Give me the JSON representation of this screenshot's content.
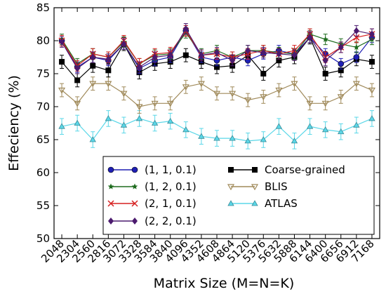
{
  "chart_data": {
    "type": "line",
    "xlabel": "Matrix Size (M=N=K)",
    "ylabel": "Effeciency (%)",
    "ylim": [
      50,
      85
    ],
    "yticks": [
      50,
      55,
      60,
      65,
      70,
      75,
      80,
      85
    ],
    "grid": false,
    "legend_position": "lower-right",
    "categories": [
      "2048",
      "2304",
      "2560",
      "2816",
      "3072",
      "3328",
      "3584",
      "3840",
      "4096",
      "4352",
      "4608",
      "4864",
      "5120",
      "5376",
      "5632",
      "5888",
      "6144",
      "6400",
      "6656",
      "6912",
      "7168"
    ],
    "series": [
      {
        "name": "(1, 1, 0.1)",
        "color": "#1f1fb4",
        "marker": "circle",
        "values": [
          80.0,
          76.0,
          77.5,
          77.0,
          79.5,
          75.8,
          77.0,
          77.5,
          81.5,
          77.5,
          77.0,
          77.5,
          77.0,
          78.0,
          78.5,
          78.0,
          80.5,
          78.0,
          76.5,
          77.5,
          80.5
        ],
        "errors": [
          0.8,
          0.8,
          0.8,
          0.8,
          0.8,
          0.8,
          0.8,
          0.8,
          0.8,
          0.8,
          0.8,
          0.8,
          0.8,
          0.8,
          0.8,
          0.8,
          0.8,
          0.8,
          0.8,
          0.8,
          0.8
        ]
      },
      {
        "name": "(1, 2, 0.1)",
        "color": "#1e6b1e",
        "marker": "star",
        "values": [
          80.2,
          76.5,
          78.0,
          77.5,
          79.8,
          76.5,
          77.8,
          78.0,
          81.2,
          78.0,
          78.5,
          77.5,
          78.5,
          78.5,
          78.2,
          78.0,
          81.0,
          80.2,
          79.5,
          79.0,
          80.2
        ],
        "errors": [
          0.8,
          0.8,
          0.8,
          0.8,
          0.8,
          0.8,
          0.8,
          0.8,
          0.8,
          0.8,
          0.8,
          0.8,
          0.8,
          0.8,
          0.8,
          0.8,
          0.8,
          0.8,
          0.8,
          0.8,
          0.8
        ]
      },
      {
        "name": "(2, 1, 0.1)",
        "color": "#d62020",
        "marker": "x",
        "values": [
          80.0,
          76.2,
          78.0,
          77.5,
          80.0,
          76.5,
          78.0,
          78.2,
          81.5,
          77.8,
          78.0,
          77.5,
          78.0,
          78.5,
          78.0,
          78.5,
          81.0,
          77.5,
          79.0,
          80.5,
          81.0
        ],
        "errors": [
          0.8,
          0.8,
          0.8,
          0.8,
          0.8,
          0.8,
          0.8,
          0.8,
          0.8,
          0.8,
          0.8,
          0.8,
          0.8,
          0.8,
          0.8,
          0.8,
          0.8,
          0.8,
          0.8,
          0.8,
          0.8
        ]
      },
      {
        "name": "(2, 2, 0.1)",
        "color": "#4b1a6e",
        "marker": "diamond",
        "values": [
          79.8,
          75.8,
          77.5,
          77.2,
          79.5,
          76.0,
          77.5,
          77.8,
          81.8,
          77.8,
          78.2,
          77.0,
          78.5,
          78.2,
          78.0,
          77.8,
          80.5,
          77.0,
          79.0,
          81.5,
          81.0
        ],
        "errors": [
          0.8,
          0.8,
          0.8,
          0.8,
          0.8,
          0.8,
          0.8,
          0.8,
          0.8,
          0.8,
          0.8,
          0.8,
          0.8,
          0.8,
          0.8,
          0.8,
          0.8,
          0.8,
          0.8,
          0.8,
          0.8
        ]
      },
      {
        "name": "Coarse-grained",
        "color": "#000000",
        "marker": "square",
        "values": [
          76.8,
          74.0,
          76.2,
          75.5,
          79.5,
          75.2,
          76.5,
          76.8,
          77.8,
          76.8,
          76.0,
          76.2,
          77.8,
          75.0,
          77.0,
          77.5,
          80.5,
          75.0,
          75.5,
          77.2,
          76.8
        ],
        "errors": [
          1.0,
          1.0,
          1.0,
          1.0,
          1.0,
          1.0,
          1.0,
          1.0,
          1.0,
          1.0,
          1.0,
          1.0,
          1.0,
          1.0,
          1.0,
          1.0,
          1.0,
          1.0,
          1.0,
          1.0,
          1.0
        ]
      },
      {
        "name": "BLIS",
        "color": "#a08a5a",
        "marker": "triangle-down",
        "values": [
          72.5,
          70.5,
          73.5,
          73.5,
          72.0,
          70.0,
          70.5,
          70.5,
          73.0,
          73.5,
          72.0,
          72.0,
          71.0,
          71.5,
          72.5,
          73.5,
          70.5,
          70.5,
          71.5,
          73.5,
          72.5
        ],
        "errors": [
          1.0,
          1.0,
          1.0,
          1.0,
          1.0,
          1.0,
          1.0,
          1.0,
          1.0,
          1.0,
          1.0,
          1.0,
          1.0,
          1.0,
          1.0,
          1.0,
          1.0,
          1.0,
          1.0,
          1.0,
          1.0
        ]
      },
      {
        "name": "ATLAS",
        "color": "#5ad7e8",
        "marker": "triangle-up",
        "values": [
          67.0,
          67.5,
          65.0,
          68.2,
          67.2,
          68.2,
          67.5,
          67.8,
          66.5,
          65.5,
          65.2,
          65.2,
          64.8,
          65.0,
          67.0,
          64.8,
          67.0,
          66.5,
          66.2,
          67.2,
          68.2
        ],
        "errors": [
          1.2,
          1.2,
          1.2,
          1.2,
          1.2,
          1.2,
          1.2,
          1.2,
          1.2,
          1.2,
          1.2,
          1.2,
          1.2,
          1.2,
          1.2,
          1.2,
          1.2,
          1.2,
          1.2,
          1.2,
          1.2
        ]
      }
    ]
  }
}
